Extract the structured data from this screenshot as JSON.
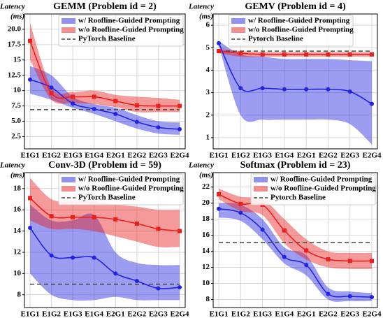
{
  "chart_data": [
    {
      "type": "line",
      "title": "GEMM (Problem id = 2)",
      "ylabel": "Latency",
      "yunit": "(ms)",
      "categories": [
        "E1G1",
        "E1G2",
        "E1G3",
        "E1G4",
        "E2G1",
        "E2G2",
        "E2G3",
        "E2G4"
      ],
      "ylim": [
        0.5,
        22.5
      ],
      "yticks": [
        2.5,
        {
          "value": 5,
          "label": "5.0"
        },
        7.5,
        10,
        12.5,
        15,
        17.5,
        {
          "value": 20,
          "label": "20.0"
        }
      ],
      "grid": true,
      "legend": "upper right",
      "series": [
        {
          "name": "w/ Roofline-Guided Prompting",
          "color": "#2323e0",
          "marker": "circle",
          "values": [
            11.8,
            10.5,
            7.9,
            7.0,
            6.2,
            4.9,
            4.0,
            3.7
          ],
          "lower": [
            9.5,
            8.5,
            7.2,
            6.2,
            5.0,
            3.8,
            3.0,
            2.8
          ],
          "upper": [
            14.0,
            12.5,
            9.0,
            7.8,
            7.2,
            6.0,
            5.0,
            4.8
          ]
        },
        {
          "name": "w/o Roofline-Guided Prompting",
          "color": "#e8201f",
          "marker": "square",
          "values": [
            18.1,
            9.6,
            9.0,
            9.0,
            8.3,
            7.6,
            7.5,
            7.5
          ],
          "lower": [
            15.0,
            8.5,
            8.0,
            7.8,
            7.3,
            6.5,
            6.5,
            6.5
          ],
          "upper": [
            21.0,
            10.5,
            9.8,
            10.0,
            9.3,
            9.0,
            8.8,
            8.5
          ]
        }
      ],
      "baseline": {
        "name": "PyTorch Baseline",
        "color": "#444444",
        "value": 6.9
      }
    },
    {
      "type": "line",
      "title": "GEMV (Problem id = 4)",
      "ylabel": "Latency",
      "yunit": "(ms)",
      "categories": [
        "E1G1",
        "E1G2",
        "E1G3",
        "E1G4",
        "E2G1",
        "E2G2",
        "E2G3",
        "E2G4"
      ],
      "ylim": [
        0.5,
        6.5
      ],
      "yticks": [
        1,
        2,
        3,
        4,
        5,
        6
      ],
      "grid": true,
      "legend": "upper left",
      "series": [
        {
          "name": "w/ Roofline-Guided Prompting",
          "color": "#2323e0",
          "marker": "circle",
          "values": [
            5.2,
            3.2,
            3.2,
            3.15,
            3.15,
            3.15,
            3.05,
            2.5
          ],
          "lower": [
            5.1,
            2.0,
            1.8,
            1.8,
            1.8,
            1.8,
            1.6,
            0.7
          ],
          "upper": [
            5.3,
            4.7,
            4.6,
            4.5,
            4.5,
            4.5,
            4.45,
            4.4
          ]
        },
        {
          "name": "w/o Roofline-Guided Prompting",
          "color": "#e8201f",
          "marker": "square",
          "values": [
            4.85,
            4.75,
            4.7,
            4.7,
            4.7,
            4.7,
            4.7,
            4.7
          ],
          "lower": [
            4.75,
            4.6,
            4.6,
            4.6,
            4.6,
            4.6,
            4.6,
            4.6
          ],
          "upper": [
            4.95,
            4.85,
            4.8,
            4.8,
            4.8,
            4.8,
            4.8,
            4.8
          ]
        }
      ],
      "baseline": {
        "name": "Pytorch Baseline",
        "color": "#444444",
        "value": 4.85
      }
    },
    {
      "type": "line",
      "title": "Conv-3D (Problem id = 59)",
      "ylabel": "Latency",
      "yunit": "(ms)",
      "categories": [
        "E1G1",
        "E1G2",
        "E1G3",
        "E1G4",
        "E2G1",
        "E2G2",
        "E2G3",
        "E2G4"
      ],
      "ylim": [
        6.8,
        19.5
      ],
      "yticks": [
        8,
        10,
        12,
        14,
        16,
        18
      ],
      "grid": true,
      "legend": "upper right",
      "series": [
        {
          "name": "w/ Roofline-Guided Prompting",
          "color": "#2323e0",
          "marker": "circle",
          "values": [
            14.3,
            11.7,
            11.5,
            11.5,
            10.0,
            9.3,
            8.6,
            8.7
          ],
          "lower": [
            10.0,
            8.0,
            7.5,
            7.5,
            7.8,
            7.5,
            7.5,
            7.5
          ],
          "upper": [
            16.5,
            15.0,
            15.0,
            15.5,
            12.0,
            11.0,
            10.8,
            10.8
          ]
        },
        {
          "name": "w/o Roofline-Guided Prompting",
          "color": "#e8201f",
          "marker": "square",
          "values": [
            17.1,
            15.4,
            15.3,
            15.3,
            15.1,
            14.7,
            14.2,
            14.0
          ],
          "lower": [
            15.0,
            14.2,
            14.2,
            14.0,
            13.5,
            13.0,
            12.5,
            12.5
          ],
          "upper": [
            19.0,
            17.0,
            16.8,
            16.8,
            16.5,
            16.3,
            16.0,
            16.0
          ]
        }
      ],
      "baseline": {
        "name": "PyTorch Baseline",
        "color": "#444444",
        "value": 9.0
      }
    },
    {
      "type": "line",
      "title": "Softmax (Problem id = 23)",
      "ylabel": "Latency",
      "yunit": "(ms)",
      "categories": [
        "E1G1",
        "E1G2",
        "E1G3",
        "E1G4",
        "E2G1",
        "E2G2",
        "E2G3",
        "E2G4"
      ],
      "ylim": [
        7,
        23.8
      ],
      "yticks": [
        8,
        10,
        12,
        14,
        16,
        18,
        20,
        22
      ],
      "grid": true,
      "legend": "upper right",
      "series": [
        {
          "name": "w/ Roofline-Guided Prompting",
          "color": "#2323e0",
          "marker": "circle",
          "values": [
            19.3,
            18.8,
            16.7,
            13.3,
            12.3,
            8.7,
            8.4,
            8.3
          ],
          "lower": [
            18.2,
            17.8,
            15.5,
            12.5,
            11.0,
            8.0,
            7.8,
            7.8
          ],
          "upper": [
            20.0,
            19.8,
            18.0,
            14.5,
            13.5,
            9.5,
            9.0,
            8.8
          ]
        },
        {
          "name": "w/o Roofline-Guided Prompting",
          "color": "#e8201f",
          "marker": "square",
          "values": [
            21.1,
            19.9,
            19.8,
            16.6,
            14.1,
            13.0,
            12.8,
            12.8
          ],
          "lower": [
            20.5,
            19.0,
            18.5,
            15.0,
            13.0,
            12.0,
            11.8,
            11.8
          ],
          "upper": [
            21.8,
            20.8,
            20.5,
            18.0,
            15.5,
            14.0,
            13.8,
            13.8
          ]
        }
      ],
      "baseline": {
        "name": "Pytorch Baseline",
        "color": "#444444",
        "value": 15.1
      }
    }
  ]
}
